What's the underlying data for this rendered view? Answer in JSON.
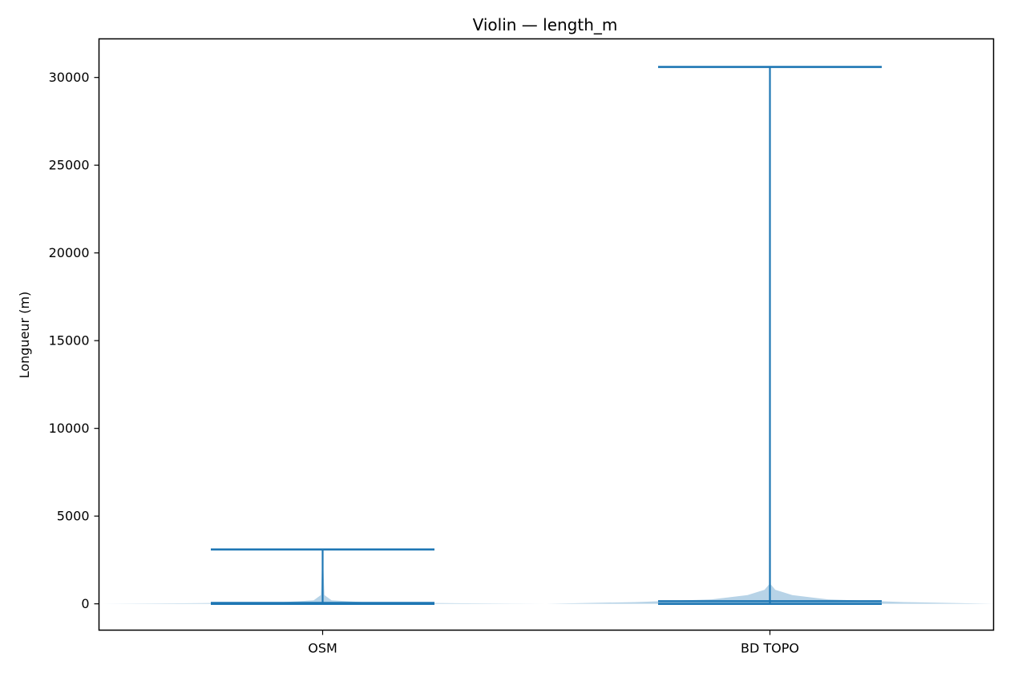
{
  "chart_data": {
    "type": "violin",
    "title": "Violin — length_m",
    "xlabel": "",
    "ylabel": "Longueur (m)",
    "categories": [
      "OSM",
      "BD TOPO"
    ],
    "ylim": [
      -1500,
      32200
    ],
    "yticks": [
      0,
      5000,
      10000,
      15000,
      20000,
      25000,
      30000
    ],
    "grid": false,
    "colors": {
      "line": "#1f77b4",
      "fill": "#1f77b4"
    },
    "violins": [
      {
        "name": "OSM",
        "min": 0,
        "max": 3100,
        "median": 50,
        "density_profile": [
          {
            "y": 0,
            "halfwidth": 0.5
          },
          {
            "y": 30,
            "halfwidth": 0.32
          },
          {
            "y": 80,
            "halfwidth": 0.1
          },
          {
            "y": 200,
            "halfwidth": 0.02
          },
          {
            "y": 500,
            "halfwidth": 0.004
          },
          {
            "y": 3100,
            "halfwidth": 0.0
          }
        ]
      },
      {
        "name": "BD TOPO",
        "min": 0,
        "max": 30600,
        "median": 150,
        "density_profile": [
          {
            "y": 0,
            "halfwidth": 0.5
          },
          {
            "y": 100,
            "halfwidth": 0.3
          },
          {
            "y": 250,
            "halfwidth": 0.13
          },
          {
            "y": 500,
            "halfwidth": 0.05
          },
          {
            "y": 800,
            "halfwidth": 0.012
          },
          {
            "y": 1100,
            "halfwidth": 0.002
          },
          {
            "y": 30600,
            "halfwidth": 0.0
          }
        ]
      }
    ]
  }
}
